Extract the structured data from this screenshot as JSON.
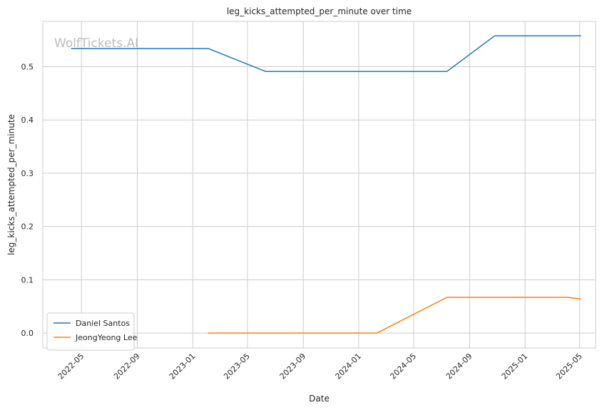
{
  "chart_data": {
    "type": "line",
    "title": "leg_kicks_attempted_per_minute over time",
    "xlabel": "Date",
    "ylabel": "leg_kicks_attempted_per_minute",
    "watermark": "WolfTickets.AI",
    "x_ticks": [
      "2022-05",
      "2022-09",
      "2023-01",
      "2023-05",
      "2023-09",
      "2024-01",
      "2024-05",
      "2024-09",
      "2025-01",
      "2025-05"
    ],
    "y_ticks": [
      "0.0",
      "0.1",
      "0.2",
      "0.3",
      "0.4",
      "0.5"
    ],
    "xlim": [
      "2022-02-05",
      "2025-06-05"
    ],
    "ylim": [
      -0.028,
      0.585
    ],
    "grid": true,
    "legend_position": "lower-left",
    "series": [
      {
        "name": "Daniel Santos",
        "color": "#1f77b4",
        "points": [
          {
            "x": "2022-04-09",
            "y": 0.534
          },
          {
            "x": "2023-02-04",
            "y": 0.534
          },
          {
            "x": "2023-06-10",
            "y": 0.491
          },
          {
            "x": "2024-07-13",
            "y": 0.491
          },
          {
            "x": "2024-10-26",
            "y": 0.558
          },
          {
            "x": "2025-05-03",
            "y": 0.558
          }
        ]
      },
      {
        "name": "JeongYeong Lee",
        "color": "#ff7f0e",
        "points": [
          {
            "x": "2023-02-04",
            "y": 0.0
          },
          {
            "x": "2024-02-10",
            "y": 0.0
          },
          {
            "x": "2024-07-13",
            "y": 0.067
          },
          {
            "x": "2025-04-05",
            "y": 0.067
          },
          {
            "x": "2025-05-03",
            "y": 0.064
          }
        ]
      }
    ]
  }
}
